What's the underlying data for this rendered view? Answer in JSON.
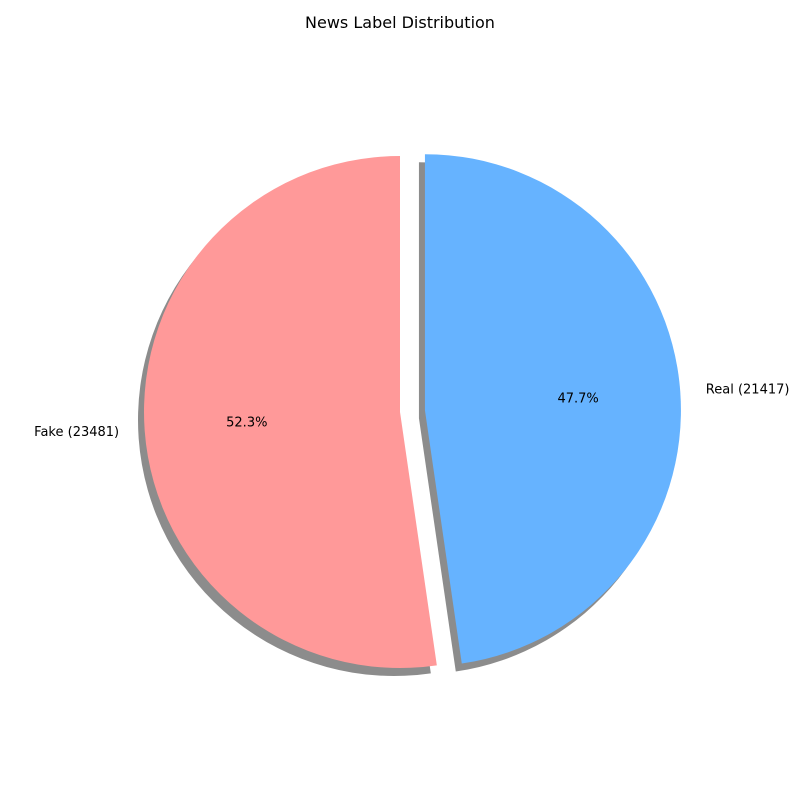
{
  "chart_data": {
    "type": "pie",
    "title": "News Label Distribution",
    "slices": [
      {
        "label": "Fake (23481)",
        "value": 23481,
        "percent_label": "52.3%",
        "color": "#ff9999",
        "exploded": false
      },
      {
        "label": "Real (21417)",
        "value": 21417,
        "percent_label": "47.7%",
        "color": "#66b3ff",
        "exploded": true
      }
    ],
    "start_angle_degrees": 90,
    "direction": "counterclockwise",
    "shadow": true,
    "legend": "none"
  }
}
